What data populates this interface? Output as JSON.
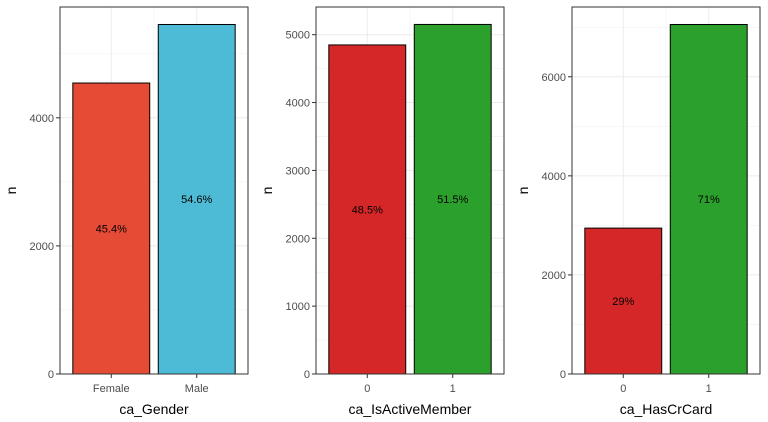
{
  "chart_data": [
    {
      "type": "bar",
      "xlabel": "ca_Gender",
      "ylabel": "n",
      "categories": [
        "Female",
        "Male"
      ],
      "values": [
        4543,
        5457
      ],
      "labels": [
        "45.4%",
        "54.6%"
      ],
      "colors": [
        "#E64B35",
        "#4DBBD5"
      ],
      "ylim": [
        0,
        5730
      ],
      "yticks": [
        0,
        2000,
        4000
      ],
      "grid": true
    },
    {
      "type": "bar",
      "xlabel": "ca_IsActiveMember",
      "ylabel": "n",
      "categories": [
        "0",
        "1"
      ],
      "values": [
        4849,
        5151
      ],
      "labels": [
        "48.5%",
        "51.5%"
      ],
      "colors": [
        "#D62728",
        "#2CA02C"
      ],
      "ylim": [
        0,
        5408
      ],
      "yticks": [
        0,
        1000,
        2000,
        3000,
        4000,
        5000
      ],
      "grid": true
    },
    {
      "type": "bar",
      "xlabel": "ca_HasCrCard",
      "ylabel": "n",
      "categories": [
        "0",
        "1"
      ],
      "values": [
        2945,
        7055
      ],
      "labels": [
        "29%",
        "71%"
      ],
      "colors": [
        "#D62728",
        "#2CA02C"
      ],
      "ylim": [
        0,
        7408
      ],
      "yticks": [
        0,
        2000,
        4000,
        6000
      ],
      "grid": true
    }
  ]
}
